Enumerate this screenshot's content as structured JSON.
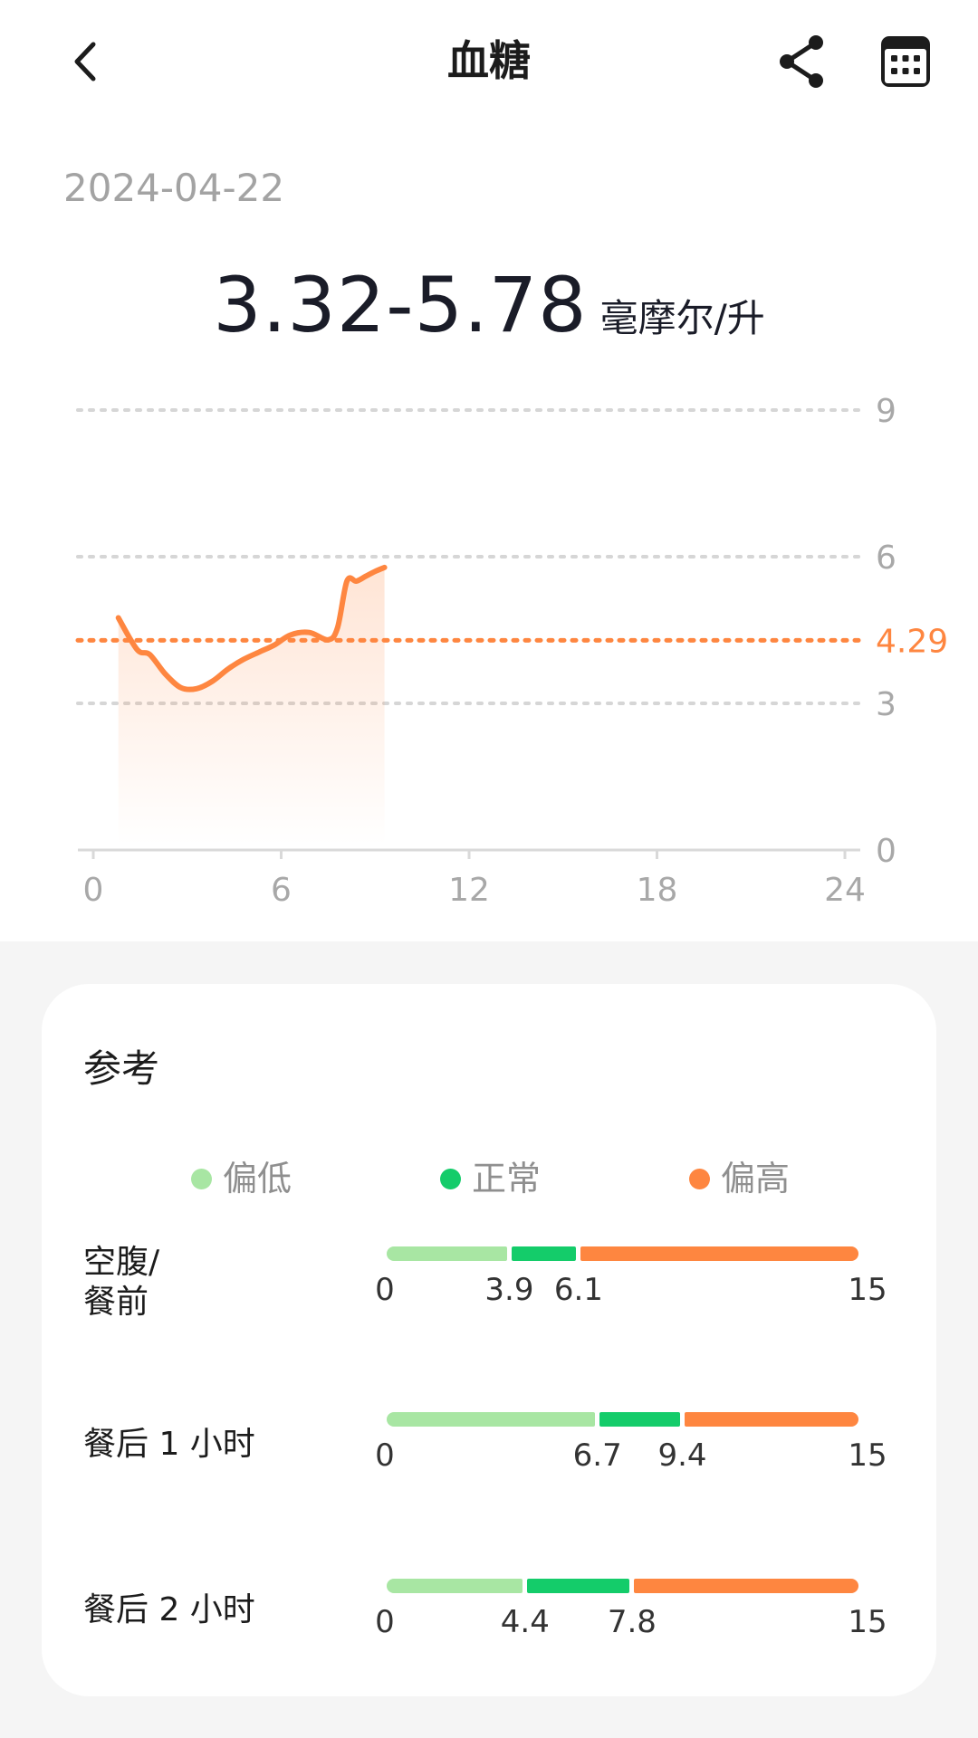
{
  "header": {
    "title": "血糖",
    "back_icon": "chevron-left-icon",
    "share_icon": "share-icon",
    "calendar_icon": "calendar-icon"
  },
  "date": "2024-04-22",
  "summary": {
    "range": "3.32-5.78",
    "unit": "毫摩尔/升"
  },
  "chart_data": {
    "type": "area",
    "xlim": [
      0,
      24
    ],
    "ylim": [
      0,
      9
    ],
    "x_ticks": [
      "0",
      "6",
      "12",
      "18",
      "24"
    ],
    "y_ticks": [
      "0",
      "3",
      "6",
      "9"
    ],
    "reference_line": {
      "value": 4.29,
      "label": "4.29",
      "color": "#fe8640"
    },
    "series": [
      {
        "color": "#fe8640",
        "x": [
          0.8,
          1.4,
          1.8,
          2.3,
          2.8,
          3.3,
          3.8,
          4.3,
          4.8,
          5.3,
          5.8,
          6.3,
          6.9,
          7.5,
          7.8,
          8.1,
          8.4,
          8.7,
          9.0,
          9.3
        ],
        "y": [
          4.75,
          4.1,
          4.0,
          3.6,
          3.32,
          3.3,
          3.45,
          3.7,
          3.9,
          4.05,
          4.2,
          4.4,
          4.45,
          4.3,
          4.55,
          5.5,
          5.5,
          5.6,
          5.7,
          5.78
        ]
      }
    ],
    "grid": true
  },
  "reference": {
    "title": "参考",
    "legend": [
      {
        "label": "偏低",
        "color": "#a8e6a3"
      },
      {
        "label": "正常",
        "color": "#14cc6a"
      },
      {
        "label": "偏高",
        "color": "#fe8640"
      }
    ],
    "scale_max": 15,
    "rows": [
      {
        "label": "空腹/\n餐前",
        "low": 3.9,
        "high": 6.1,
        "ticks": [
          "0",
          "3.9",
          "6.1",
          "15"
        ]
      },
      {
        "label": "餐后 1 小时",
        "low": 6.7,
        "high": 9.4,
        "ticks": [
          "0",
          "6.7",
          "9.4",
          "15"
        ]
      },
      {
        "label": "餐后 2 小时",
        "low": 4.4,
        "high": 7.8,
        "ticks": [
          "0",
          "4.4",
          "7.8",
          "15"
        ]
      }
    ]
  }
}
